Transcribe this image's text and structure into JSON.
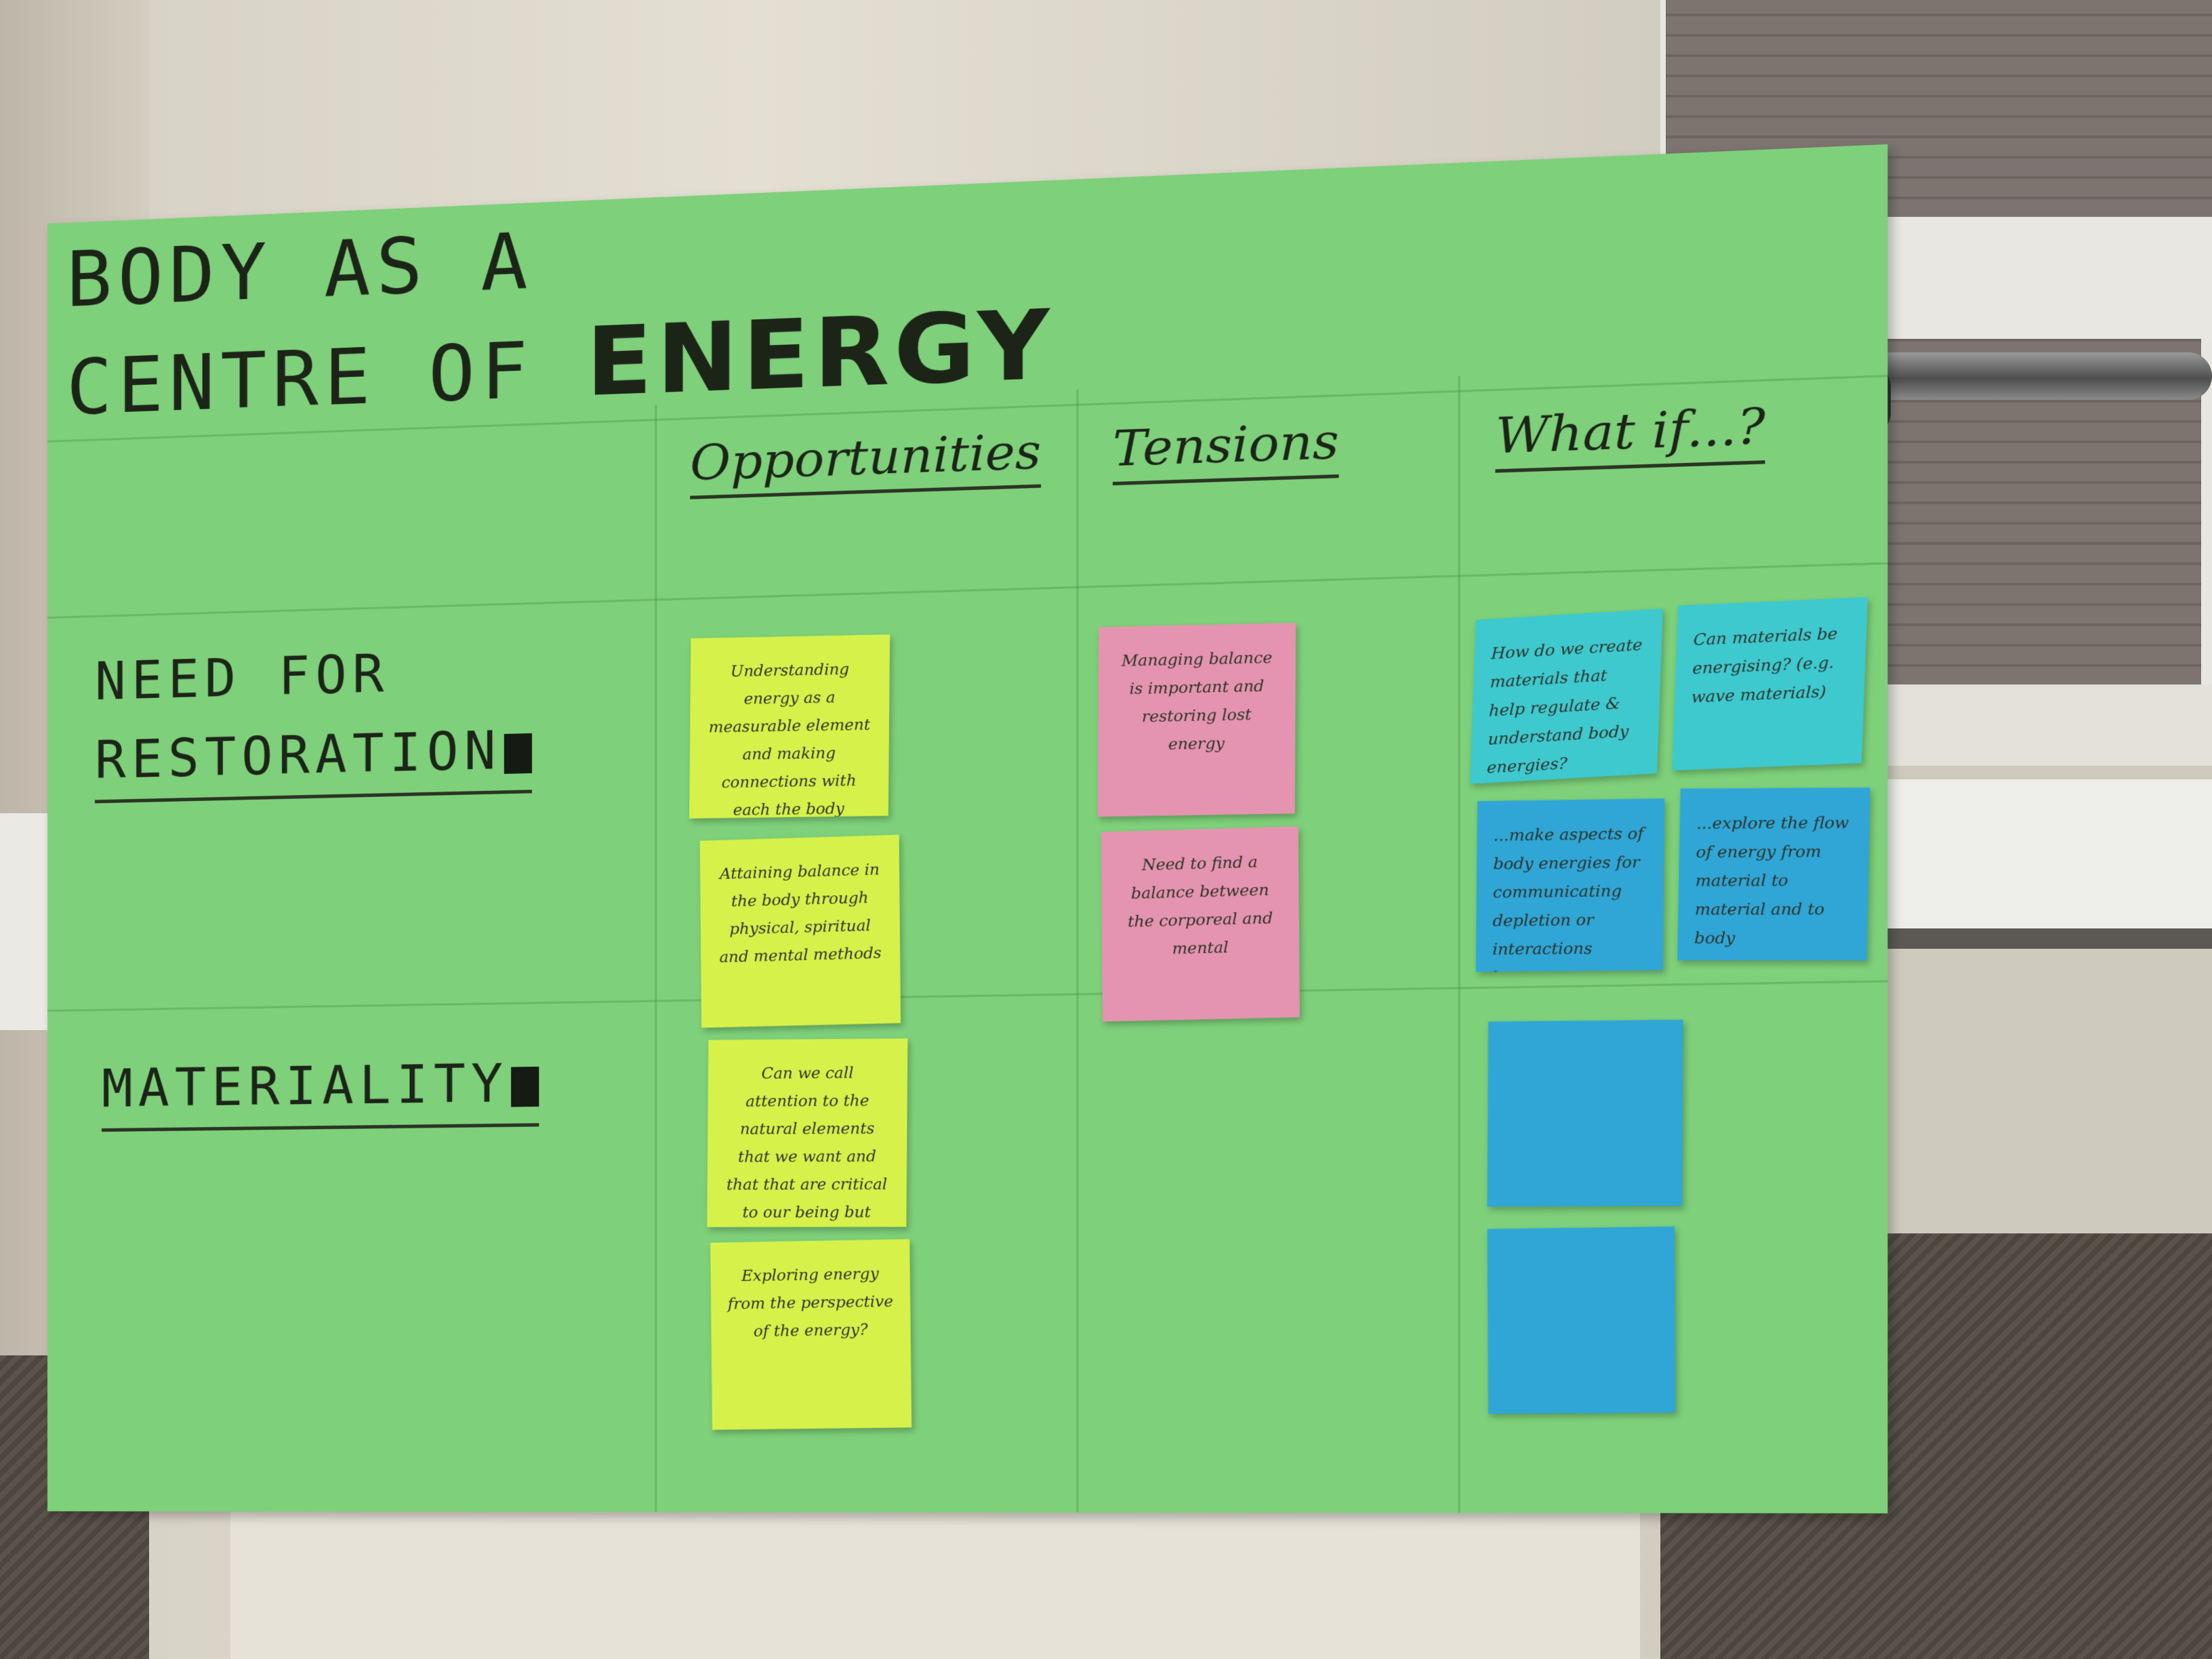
{
  "board": {
    "title_line1": "BODY AS A",
    "title_line2_prefix": "CENTRE OF ",
    "title_line2_emphasis": "ENERGY"
  },
  "columns": {
    "opportunities": "Opportunities",
    "tensions": "Tensions",
    "what_if": "What if...?"
  },
  "rows": {
    "need_line1": "NEED FOR",
    "need_line2": "RESTORATION",
    "materiality": "MATERIALITY"
  },
  "notes": {
    "opportunities_need_1": "Understanding energy as a measurable element and making connections with each the body experiences energy",
    "opportunities_need_2": "Attaining balance in the body through physical, spiritual and mental methods",
    "opportunities_materiality_1": "Can we call attention to the natural elements that we want and that that are critical to our being but rarely thought about",
    "opportunities_materiality_2": "Exploring energy from the perspective of the energy?",
    "tensions_need_1": "Managing balance is important and restoring lost energy",
    "tensions_need_2": "Need to find a balance between the corporeal and mental",
    "whatif_need_1": "How do we create materials that help regulate & understand body energies?",
    "whatif_need_2": "Can materials be energising? (e.g. wave materials)",
    "whatif_need_3": "...make aspects of body energies for communicating depletion or interactions between energy with the body",
    "whatif_need_4": "...explore the flow of energy from material to material and to body"
  },
  "colors": {
    "board": "#7ed07a",
    "note_yellow": "#d6f24a",
    "note_pink": "#e494b0",
    "note_cyan": "#3ec9cf",
    "note_blue": "#2fa6d6"
  }
}
